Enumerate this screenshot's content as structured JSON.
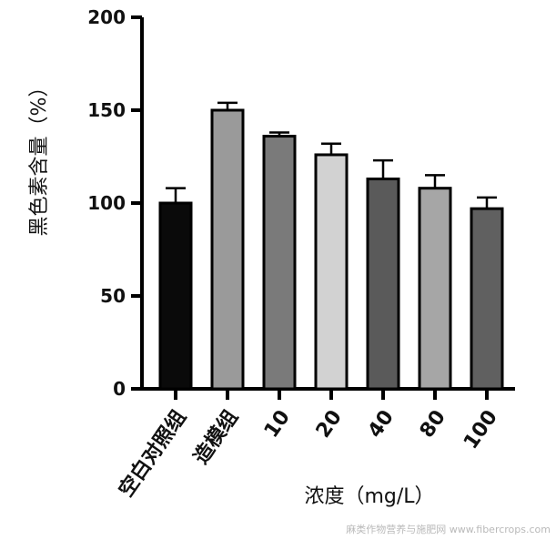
{
  "chart_data": {
    "type": "bar",
    "title": "",
    "xlabel": "浓度（mg/L）",
    "ylabel": "黑色素含量（%）",
    "ylim": [
      0,
      200
    ],
    "yticks": [
      "0",
      "50",
      "100",
      "150",
      "200"
    ],
    "categories": [
      "空白对照组",
      "造模组",
      "10",
      "20",
      "40",
      "80",
      "100"
    ],
    "values": [
      100,
      150,
      136,
      126,
      113,
      108,
      97
    ],
    "errors": [
      8,
      4,
      2,
      6,
      10,
      7,
      6
    ],
    "bar_colors": [
      "#0a0a0a",
      "#9a9a9a",
      "#7a7a7a",
      "#d2d2d2",
      "#5a5a5a",
      "#a6a6a6",
      "#606060"
    ],
    "grid": false,
    "legend": "none"
  },
  "watermark": "麻类作物营养与施肥网 www.fibercrops.com"
}
